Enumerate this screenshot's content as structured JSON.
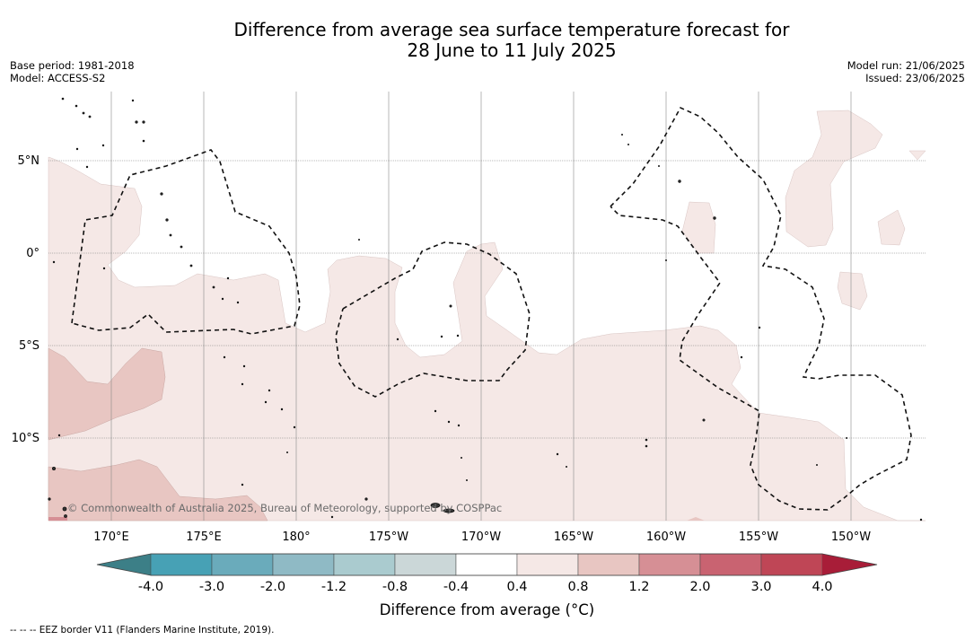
{
  "title": {
    "line1": "Difference from average sea surface temperature forecast for",
    "line2": "28 June to 11 July 2025"
  },
  "meta": {
    "base_period": "Base period: 1981-2018",
    "model": "Model: ACCESS-S2",
    "model_run": "Model run: 21/06/2025",
    "issued": "Issued: 23/06/2025"
  },
  "map": {
    "lat_labels": [
      "5°N",
      "0°",
      "5°S",
      "10°S"
    ],
    "lon_labels": [
      "170°E",
      "175°E",
      "180°",
      "175°W",
      "170°W",
      "165°W",
      "160°W",
      "155°W",
      "150°W"
    ],
    "copyright": "© Commonwealth of Australia 2025, Bureau of Meteorology, supported by COSPPac"
  },
  "colorbar": {
    "tick_labels": [
      "-4.0",
      "-3.0",
      "-2.0",
      "-1.2",
      "-0.8",
      "-0.4",
      "0.4",
      "0.8",
      "1.2",
      "2.0",
      "3.0",
      "4.0"
    ],
    "colors": {
      "under": "#3c7f87",
      "bins": [
        "#47a1b5",
        "#6aabbb",
        "#8fbac5",
        "#aacbcf",
        "#cbd7d8",
        "#ffffff",
        "#f5e8e6",
        "#e8c6c2",
        "#d68f95",
        "#c96371",
        "#bf4656"
      ],
      "over": "#a81d38"
    },
    "title": "Difference from average (°C)"
  },
  "legend": {
    "text": "--  --  -- EEZ border V11 (Flanders Marine Institute, 2019)."
  }
}
